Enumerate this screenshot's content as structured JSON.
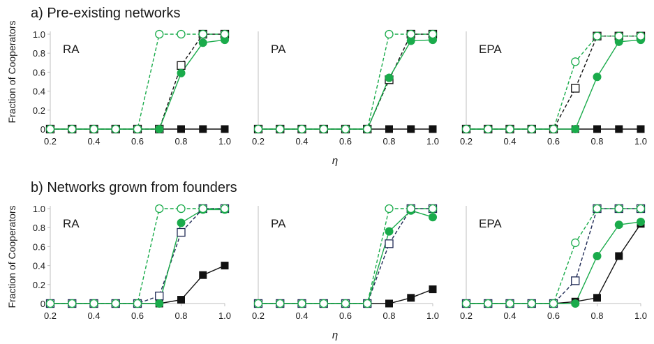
{
  "figure": {
    "sections": [
      {
        "id": "a",
        "title": "a) Pre-existing networks",
        "ylabel": "Fraction of Cooperators",
        "xlabel": "η"
      },
      {
        "id": "b",
        "title": "b) Networks grown from founders",
        "ylabel": "Fraction of Cooperators",
        "xlabel": "η"
      }
    ]
  },
  "colors": {
    "green": "#1aab4b",
    "black": "#111111",
    "navy": "#1f2a55",
    "axis": "#bfbfbf"
  },
  "chart_data": [
    {
      "type": "line",
      "section": "a",
      "panel_label": "RA",
      "x": [
        0.2,
        0.3,
        0.4,
        0.5,
        0.6,
        0.7,
        0.8,
        0.9,
        1.0
      ],
      "xlim": [
        0.2,
        1.0
      ],
      "ylim": [
        0,
        1.0
      ],
      "xticks": [
        "0.2",
        "0.4",
        "0.6",
        "0.8",
        "1.0"
      ],
      "yticks": [
        "0",
        "0.2",
        "0.4",
        "0.6",
        "0.8",
        "1.0"
      ],
      "series": [
        {
          "marker": "filled-square",
          "line": "solid",
          "color": "#111111",
          "values": [
            0,
            0,
            0,
            0,
            0,
            0,
            0,
            0,
            0
          ]
        },
        {
          "marker": "open-square",
          "line": "dashed",
          "color": "#111111",
          "values": [
            0,
            0,
            0,
            0,
            0,
            0,
            0.67,
            1.0,
            1.0
          ]
        },
        {
          "marker": "filled-circle",
          "line": "solid",
          "color": "#1aab4b",
          "values": [
            0,
            0,
            0,
            0,
            0,
            0,
            0.59,
            0.91,
            0.94
          ]
        },
        {
          "marker": "open-circle",
          "line": "dashed",
          "color": "#1aab4b",
          "values": [
            0,
            0,
            0,
            0,
            0,
            1.0,
            1.0,
            1.0,
            1.0
          ]
        }
      ]
    },
    {
      "type": "line",
      "section": "a",
      "panel_label": "PA",
      "x": [
        0.2,
        0.3,
        0.4,
        0.5,
        0.6,
        0.7,
        0.8,
        0.9,
        1.0
      ],
      "xlim": [
        0.2,
        1.0
      ],
      "ylim": [
        0,
        1.0
      ],
      "xticks": [
        "0.2",
        "0.4",
        "0.6",
        "0.8",
        "1.0"
      ],
      "yticks": [],
      "series": [
        {
          "marker": "filled-square",
          "line": "solid",
          "color": "#111111",
          "values": [
            0,
            0,
            0,
            0,
            0,
            0,
            0,
            0,
            0
          ]
        },
        {
          "marker": "open-square",
          "line": "dashed",
          "color": "#111111",
          "values": [
            0,
            0,
            0,
            0,
            0,
            0,
            0.52,
            1.0,
            1.0
          ]
        },
        {
          "marker": "filled-circle",
          "line": "solid",
          "color": "#1aab4b",
          "values": [
            0,
            0,
            0,
            0,
            0,
            0,
            0.54,
            0.93,
            0.94
          ]
        },
        {
          "marker": "open-circle",
          "line": "dashed",
          "color": "#1aab4b",
          "values": [
            0,
            0,
            0,
            0,
            0,
            0,
            1.0,
            1.0,
            1.0
          ]
        }
      ]
    },
    {
      "type": "line",
      "section": "a",
      "panel_label": "EPA",
      "x": [
        0.2,
        0.3,
        0.4,
        0.5,
        0.6,
        0.7,
        0.8,
        0.9,
        1.0
      ],
      "xlim": [
        0.2,
        1.0
      ],
      "ylim": [
        0,
        1.0
      ],
      "xticks": [
        "0.2",
        "0.4",
        "0.6",
        "0.8",
        "1.0"
      ],
      "yticks": [],
      "series": [
        {
          "marker": "filled-square",
          "line": "solid",
          "color": "#111111",
          "values": [
            0,
            0,
            0,
            0,
            0,
            0,
            0,
            0,
            0
          ]
        },
        {
          "marker": "open-square",
          "line": "dashed",
          "color": "#111111",
          "values": [
            0,
            0,
            0,
            0,
            0,
            0.43,
            0.98,
            0.98,
            0.98
          ]
        },
        {
          "marker": "filled-circle",
          "line": "solid",
          "color": "#1aab4b",
          "values": [
            0,
            0,
            0,
            0,
            0,
            0,
            0.55,
            0.92,
            0.94
          ]
        },
        {
          "marker": "open-circle",
          "line": "dashed",
          "color": "#1aab4b",
          "values": [
            0,
            0,
            0,
            0,
            0,
            0.71,
            0.98,
            0.98,
            0.98
          ]
        }
      ]
    },
    {
      "type": "line",
      "section": "b",
      "panel_label": "RA",
      "x": [
        0.2,
        0.3,
        0.4,
        0.5,
        0.6,
        0.7,
        0.8,
        0.9,
        1.0
      ],
      "xlim": [
        0.2,
        1.0
      ],
      "ylim": [
        0,
        1.0
      ],
      "xticks": [
        "0.2",
        "0.4",
        "0.6",
        "0.8",
        "1.0"
      ],
      "yticks": [
        "0",
        "0.2",
        "0.4",
        "0.6",
        "0.8",
        "1.0"
      ],
      "series": [
        {
          "marker": "filled-square",
          "line": "solid",
          "color": "#111111",
          "values": [
            0,
            0,
            0,
            0,
            0,
            0,
            0.04,
            0.3,
            0.4
          ]
        },
        {
          "marker": "open-square",
          "line": "dashed",
          "color": "#1f2a55",
          "values": [
            0,
            0,
            0,
            0,
            0,
            0.08,
            0.75,
            1.0,
            1.0
          ]
        },
        {
          "marker": "filled-circle",
          "line": "solid",
          "color": "#1aab4b",
          "values": [
            0,
            0,
            0,
            0,
            0,
            0,
            0.85,
            0.99,
            0.99
          ]
        },
        {
          "marker": "open-circle",
          "line": "dashed",
          "color": "#1aab4b",
          "values": [
            0,
            0,
            0,
            0,
            0,
            1.0,
            1.0,
            1.0,
            1.0
          ]
        }
      ]
    },
    {
      "type": "line",
      "section": "b",
      "panel_label": "PA",
      "x": [
        0.2,
        0.3,
        0.4,
        0.5,
        0.6,
        0.7,
        0.8,
        0.9,
        1.0
      ],
      "xlim": [
        0.2,
        1.0
      ],
      "ylim": [
        0,
        1.0
      ],
      "xticks": [
        "0.2",
        "0.4",
        "0.6",
        "0.8",
        "1.0"
      ],
      "yticks": [],
      "series": [
        {
          "marker": "filled-square",
          "line": "solid",
          "color": "#111111",
          "values": [
            0,
            0,
            0,
            0,
            0,
            0,
            0,
            0.06,
            0.15
          ]
        },
        {
          "marker": "open-square",
          "line": "dashed",
          "color": "#1f2a55",
          "values": [
            0,
            0,
            0,
            0,
            0,
            0,
            0.63,
            1.0,
            1.0
          ]
        },
        {
          "marker": "filled-circle",
          "line": "solid",
          "color": "#1aab4b",
          "values": [
            0,
            0,
            0,
            0,
            0,
            0,
            0.76,
            0.98,
            0.91
          ]
        },
        {
          "marker": "open-circle",
          "line": "dashed",
          "color": "#1aab4b",
          "values": [
            0,
            0,
            0,
            0,
            0,
            0,
            1.0,
            1.0,
            1.0
          ]
        }
      ]
    },
    {
      "type": "line",
      "section": "b",
      "panel_label": "EPA",
      "x": [
        0.2,
        0.3,
        0.4,
        0.5,
        0.6,
        0.7,
        0.8,
        0.9,
        1.0
      ],
      "xlim": [
        0.2,
        1.0
      ],
      "ylim": [
        0,
        1.0
      ],
      "xticks": [
        "0.2",
        "0.4",
        "0.6",
        "0.8",
        "1.0"
      ],
      "yticks": [],
      "series": [
        {
          "marker": "filled-square",
          "line": "solid",
          "color": "#111111",
          "values": [
            0,
            0,
            0,
            0,
            0,
            0.02,
            0.06,
            0.5,
            0.84
          ]
        },
        {
          "marker": "open-square",
          "line": "dashed",
          "color": "#1f2a55",
          "values": [
            0,
            0,
            0,
            0,
            0,
            0.24,
            1.0,
            1.0,
            1.0
          ]
        },
        {
          "marker": "filled-circle",
          "line": "solid",
          "color": "#1aab4b",
          "values": [
            0,
            0,
            0,
            0,
            0,
            0,
            0.5,
            0.83,
            0.86
          ]
        },
        {
          "marker": "open-circle",
          "line": "dashed",
          "color": "#1aab4b",
          "values": [
            0,
            0,
            0,
            0,
            0,
            0.64,
            1.0,
            1.0,
            1.0
          ]
        }
      ]
    }
  ]
}
